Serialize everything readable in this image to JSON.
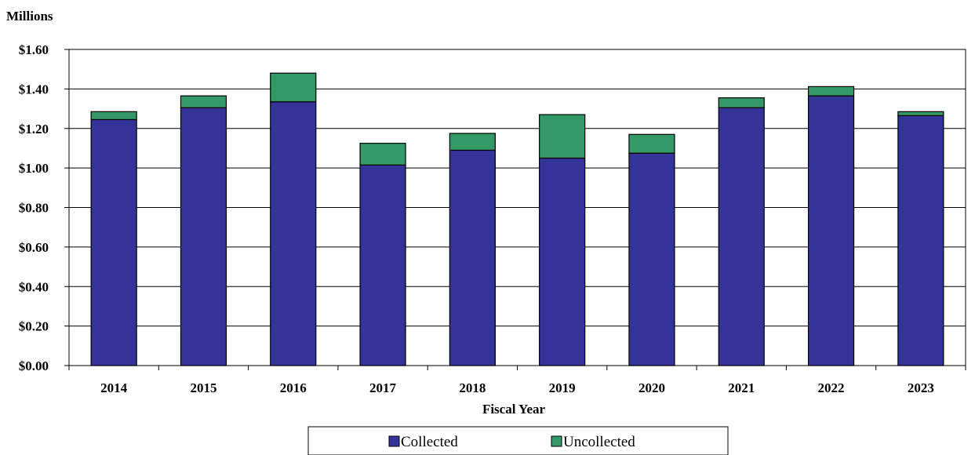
{
  "chart_data": {
    "type": "bar",
    "stacked": true,
    "categories": [
      "2014",
      "2015",
      "2016",
      "2017",
      "2018",
      "2019",
      "2020",
      "2021",
      "2022",
      "2023"
    ],
    "series": [
      {
        "name": "Collected",
        "color": "#333399",
        "values": [
          1.245,
          1.305,
          1.335,
          1.015,
          1.09,
          1.05,
          1.075,
          1.305,
          1.365,
          1.265
        ]
      },
      {
        "name": "Uncollected",
        "color": "#339966",
        "values": [
          0.04,
          0.06,
          0.145,
          0.11,
          0.085,
          0.22,
          0.095,
          0.05,
          0.047,
          0.02
        ]
      }
    ],
    "ylabel": "Millions",
    "xlabel": "Fiscal Year",
    "ylim": [
      0,
      1.6
    ],
    "yticks": [
      "$0.00",
      "$0.20",
      "$0.40",
      "$0.60",
      "$0.80",
      "$1.00",
      "$1.20",
      "$1.40",
      "$1.60"
    ],
    "ytick_step": 0.2,
    "grid": true,
    "legend": "bottom-center"
  }
}
